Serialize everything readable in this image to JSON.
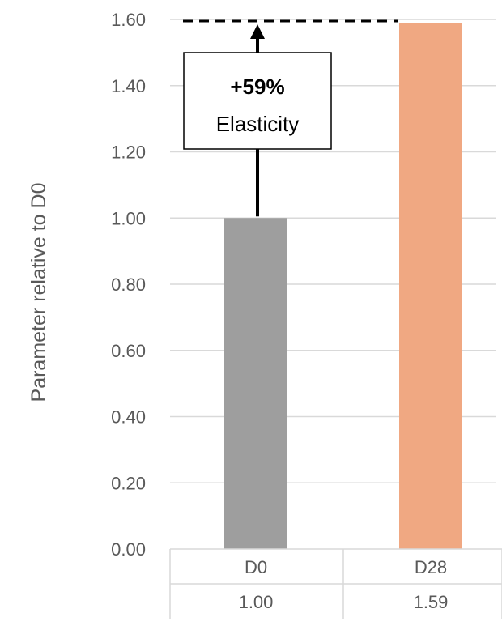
{
  "chart_data": {
    "type": "bar",
    "categories": [
      "D0",
      "D28"
    ],
    "values": [
      1.0,
      1.59
    ],
    "value_labels": [
      "1.00",
      "1.59"
    ],
    "colors": [
      "#9e9e9e",
      "#f0a882"
    ],
    "ylabel": "Parameter relative to D0",
    "xlabel": "",
    "ylim": [
      0,
      1.6
    ],
    "yticks": [
      "0.00",
      "0.20",
      "0.40",
      "0.60",
      "0.80",
      "1.00",
      "1.20",
      "1.40",
      "1.60"
    ],
    "grid": true,
    "data_table": true,
    "annotation": {
      "bold_text": "+59%",
      "text": "Elasticity",
      "from_value": 1.0,
      "to_value": 1.6
    }
  }
}
